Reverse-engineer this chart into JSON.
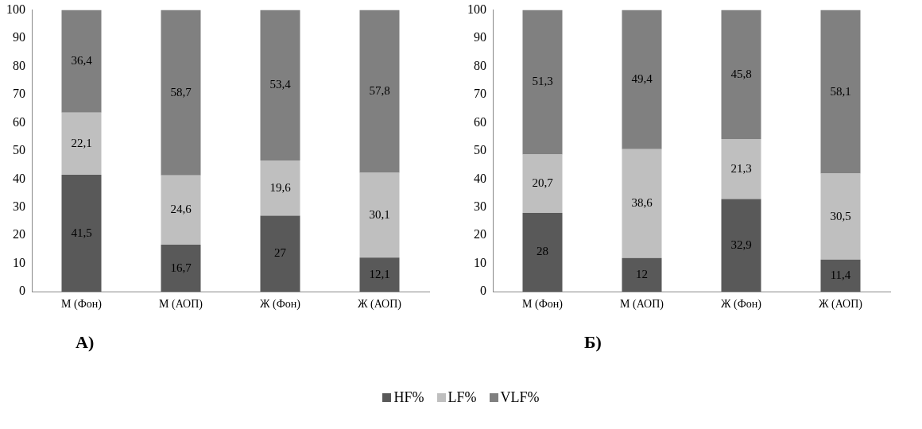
{
  "chart_data": [
    {
      "type": "bar",
      "stacked": true,
      "categories": [
        "М (Фон)",
        "М (АОП)",
        "Ж (Фон)",
        "Ж (АОП)"
      ],
      "series": [
        {
          "name": "HF%",
          "color": "#595959",
          "values": [
            41.5,
            16.7,
            27,
            12.1
          ],
          "value_labels": [
            "41,5",
            "16,7",
            "27",
            "12,1"
          ]
        },
        {
          "name": "LF%",
          "color": "#bfbfbf",
          "values": [
            22.1,
            24.6,
            19.6,
            30.1
          ],
          "value_labels": [
            "22,1",
            "24,6",
            "19,6",
            "30,1"
          ]
        },
        {
          "name": "VLF%",
          "color": "#808080",
          "values": [
            36.4,
            58.7,
            53.4,
            57.8
          ],
          "value_labels": [
            "36,4",
            "58,7",
            "53,4",
            "57,8"
          ]
        }
      ],
      "ylim": [
        0,
        100
      ],
      "yticks": [
        0,
        10,
        20,
        30,
        40,
        50,
        60,
        70,
        80,
        90,
        100
      ],
      "grid": false,
      "legend": "bottom",
      "annotations": [
        "А)"
      ]
    },
    {
      "type": "bar",
      "stacked": true,
      "categories": [
        "М (Фон)",
        "М (АОП)",
        "Ж (Фон)",
        "Ж (АОП)"
      ],
      "series": [
        {
          "color": "#595959",
          "values": [
            28,
            12,
            32.9,
            11.4
          ],
          "value_labels": [
            "28",
            "12",
            "32,9",
            "11,4"
          ]
        },
        {
          "color": "#bfbfbf",
          "values": [
            20.7,
            38.6,
            21.3,
            30.5
          ],
          "value_labels": [
            "20,7",
            "38,6",
            "21,3",
            "30,5"
          ]
        },
        {
          "color": "#808080",
          "values": [
            51.3,
            49.4,
            45.8,
            58.1
          ],
          "value_labels": [
            "51,3",
            "49,4",
            "45,8",
            "58,1"
          ]
        }
      ],
      "ylim": [
        0,
        100
      ],
      "yticks": [
        0,
        10,
        20,
        30,
        40,
        50,
        60,
        70,
        80,
        90,
        100
      ],
      "grid": false,
      "annotations": [
        "Б)"
      ]
    }
  ]
}
